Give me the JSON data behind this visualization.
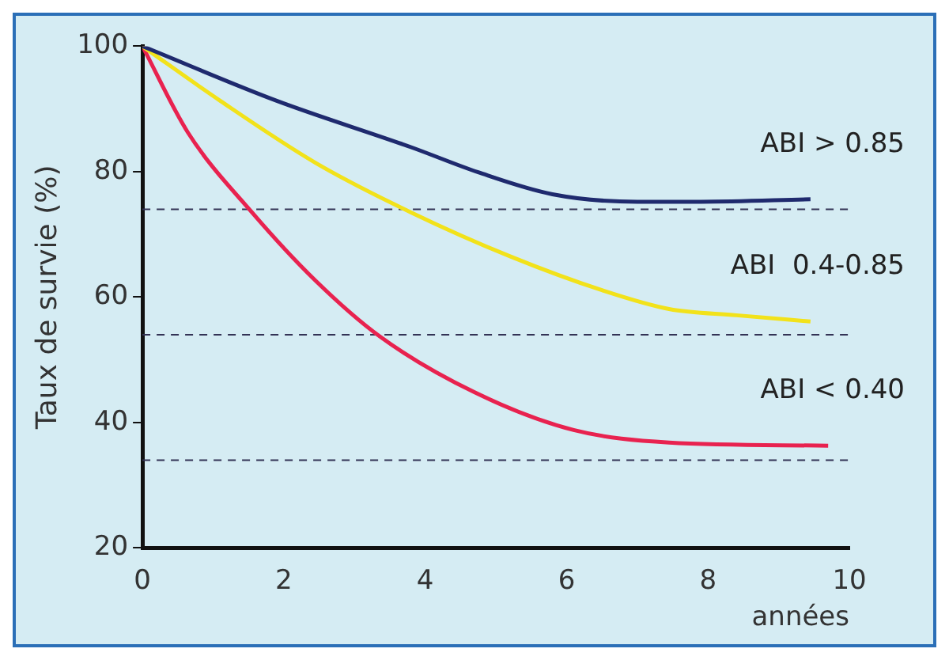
{
  "chart_data": {
    "type": "line",
    "xlabel": "années",
    "ylabel": "Taux de survie (%)",
    "xlim": [
      0,
      10
    ],
    "xticks": [
      0,
      2,
      4,
      6,
      8,
      10
    ],
    "ylim": [
      20,
      100
    ],
    "yticks": [
      20,
      40,
      60,
      80,
      100
    ],
    "grid": false,
    "marker": "none",
    "line_style": "solid",
    "series": [
      {
        "name": "ABI > 0.85",
        "color": "#1f2a6e",
        "x": [
          0,
          1.9,
          3.8,
          4.75,
          5.8,
          7,
          7.9,
          9.45
        ],
        "values": [
          100,
          91.3,
          83.9,
          79.9,
          76.4,
          75.2,
          75.2,
          75.6
        ]
      },
      {
        "name": "ABI  0.4-0.85",
        "color": "#f2e21a",
        "x": [
          0,
          1.1,
          2.45,
          3.8,
          5.2,
          6.5,
          7.45,
          8.4,
          9.45
        ],
        "values": [
          100,
          91.3,
          81.4,
          73.5,
          66.5,
          61.1,
          58.1,
          57.1,
          56.1
        ]
      },
      {
        "name": "ABI < 0.40",
        "color": "#e8224f",
        "x": [
          0,
          0.64,
          1.55,
          2.45,
          3.36,
          4.7,
          6.1,
          7.45,
          9.7
        ],
        "values": [
          100,
          86.3,
          73.5,
          62.6,
          53.7,
          44.8,
          38.8,
          36.8,
          36.3
        ]
      }
    ],
    "ref_lines": [
      {
        "axis": "y",
        "value": 74,
        "color": "#333355",
        "line_style": "dashed"
      },
      {
        "axis": "y",
        "value": 54,
        "color": "#333355",
        "line_style": "dashed"
      },
      {
        "axis": "y",
        "value": 34,
        "color": "#333355",
        "line_style": "dashed"
      }
    ]
  }
}
